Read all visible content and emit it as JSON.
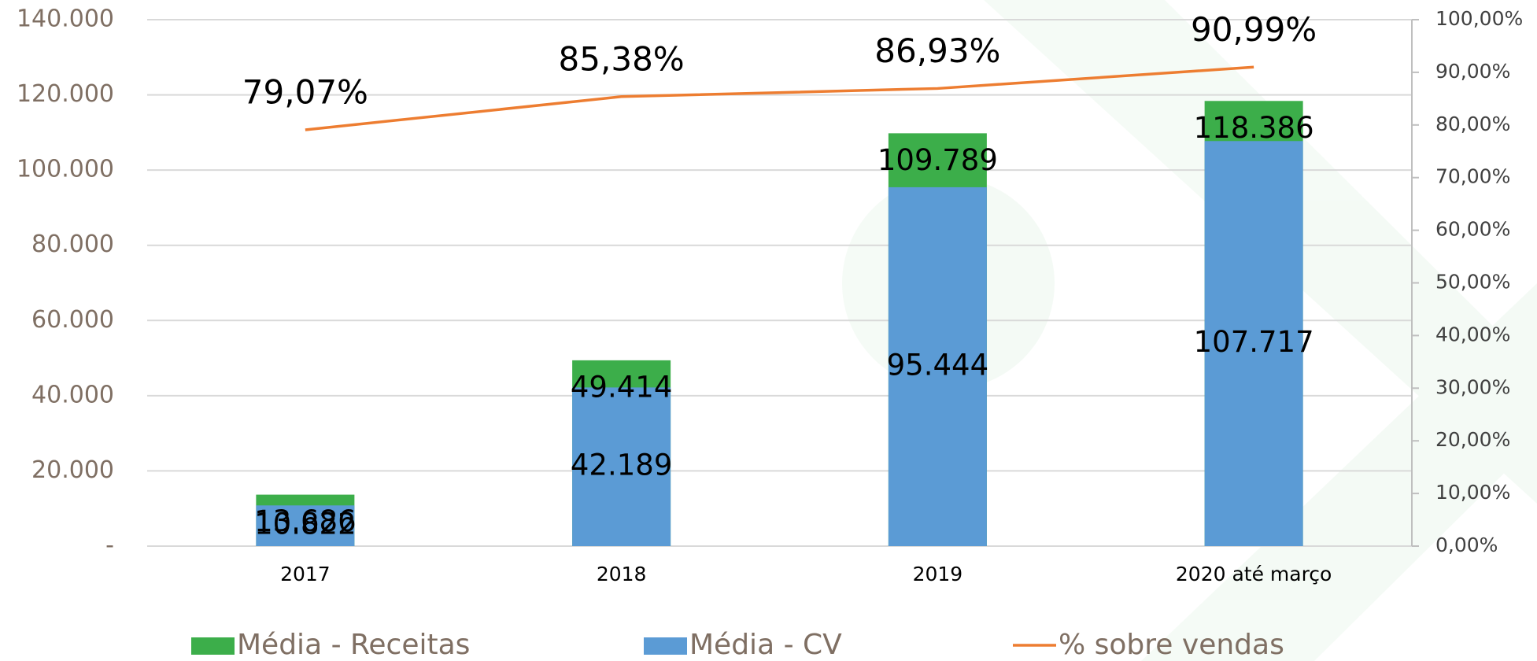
{
  "chart_data": {
    "type": "bar",
    "categories": [
      "2017",
      "2018",
      "2019",
      "2020 até março"
    ],
    "series": [
      {
        "name": "Média - Receitas",
        "color": "#3cae4a",
        "type": "bar",
        "values": [
          13686,
          49414,
          109789,
          118386
        ],
        "value_labels": [
          "13.686",
          "49.414",
          "109.789",
          "118.386"
        ]
      },
      {
        "name": "Média - CV",
        "color": "#5b9bd5",
        "type": "bar",
        "values": [
          10822,
          42189,
          95444,
          107717
        ],
        "value_labels": [
          "10.822",
          "42.189",
          "95.444",
          "107.717"
        ]
      },
      {
        "name": "% sobre vendas",
        "color": "#ed7d31",
        "type": "line",
        "axis": "y2",
        "values": [
          79.07,
          85.38,
          86.93,
          90.99
        ],
        "value_labels": [
          "79,07%",
          "85,38%",
          "86,93%",
          "90,99%"
        ]
      }
    ],
    "ylim": [
      0,
      140000
    ],
    "yticks": [
      {
        "value": 0,
        "label": "-"
      },
      {
        "value": 20000,
        "label": "20.000"
      },
      {
        "value": 40000,
        "label": "40.000"
      },
      {
        "value": 60000,
        "label": "60.000"
      },
      {
        "value": 80000,
        "label": "80.000"
      },
      {
        "value": 100000,
        "label": "100.000"
      },
      {
        "value": 120000,
        "label": "120.000"
      },
      {
        "value": 140000,
        "label": "140.000"
      }
    ],
    "y2lim": [
      0,
      100
    ],
    "y2ticks": [
      {
        "value": 0,
        "label": "0,00%"
      },
      {
        "value": 10,
        "label": "10,00%"
      },
      {
        "value": 20,
        "label": "20,00%"
      },
      {
        "value": 30,
        "label": "30,00%"
      },
      {
        "value": 40,
        "label": "40,00%"
      },
      {
        "value": 50,
        "label": "50,00%"
      },
      {
        "value": 60,
        "label": "60,00%"
      },
      {
        "value": 70,
        "label": "70,00%"
      },
      {
        "value": 80,
        "label": "80,00%"
      },
      {
        "value": 90,
        "label": "90,00%"
      },
      {
        "value": 100,
        "label": "100,00%"
      }
    ],
    "grid": true
  }
}
